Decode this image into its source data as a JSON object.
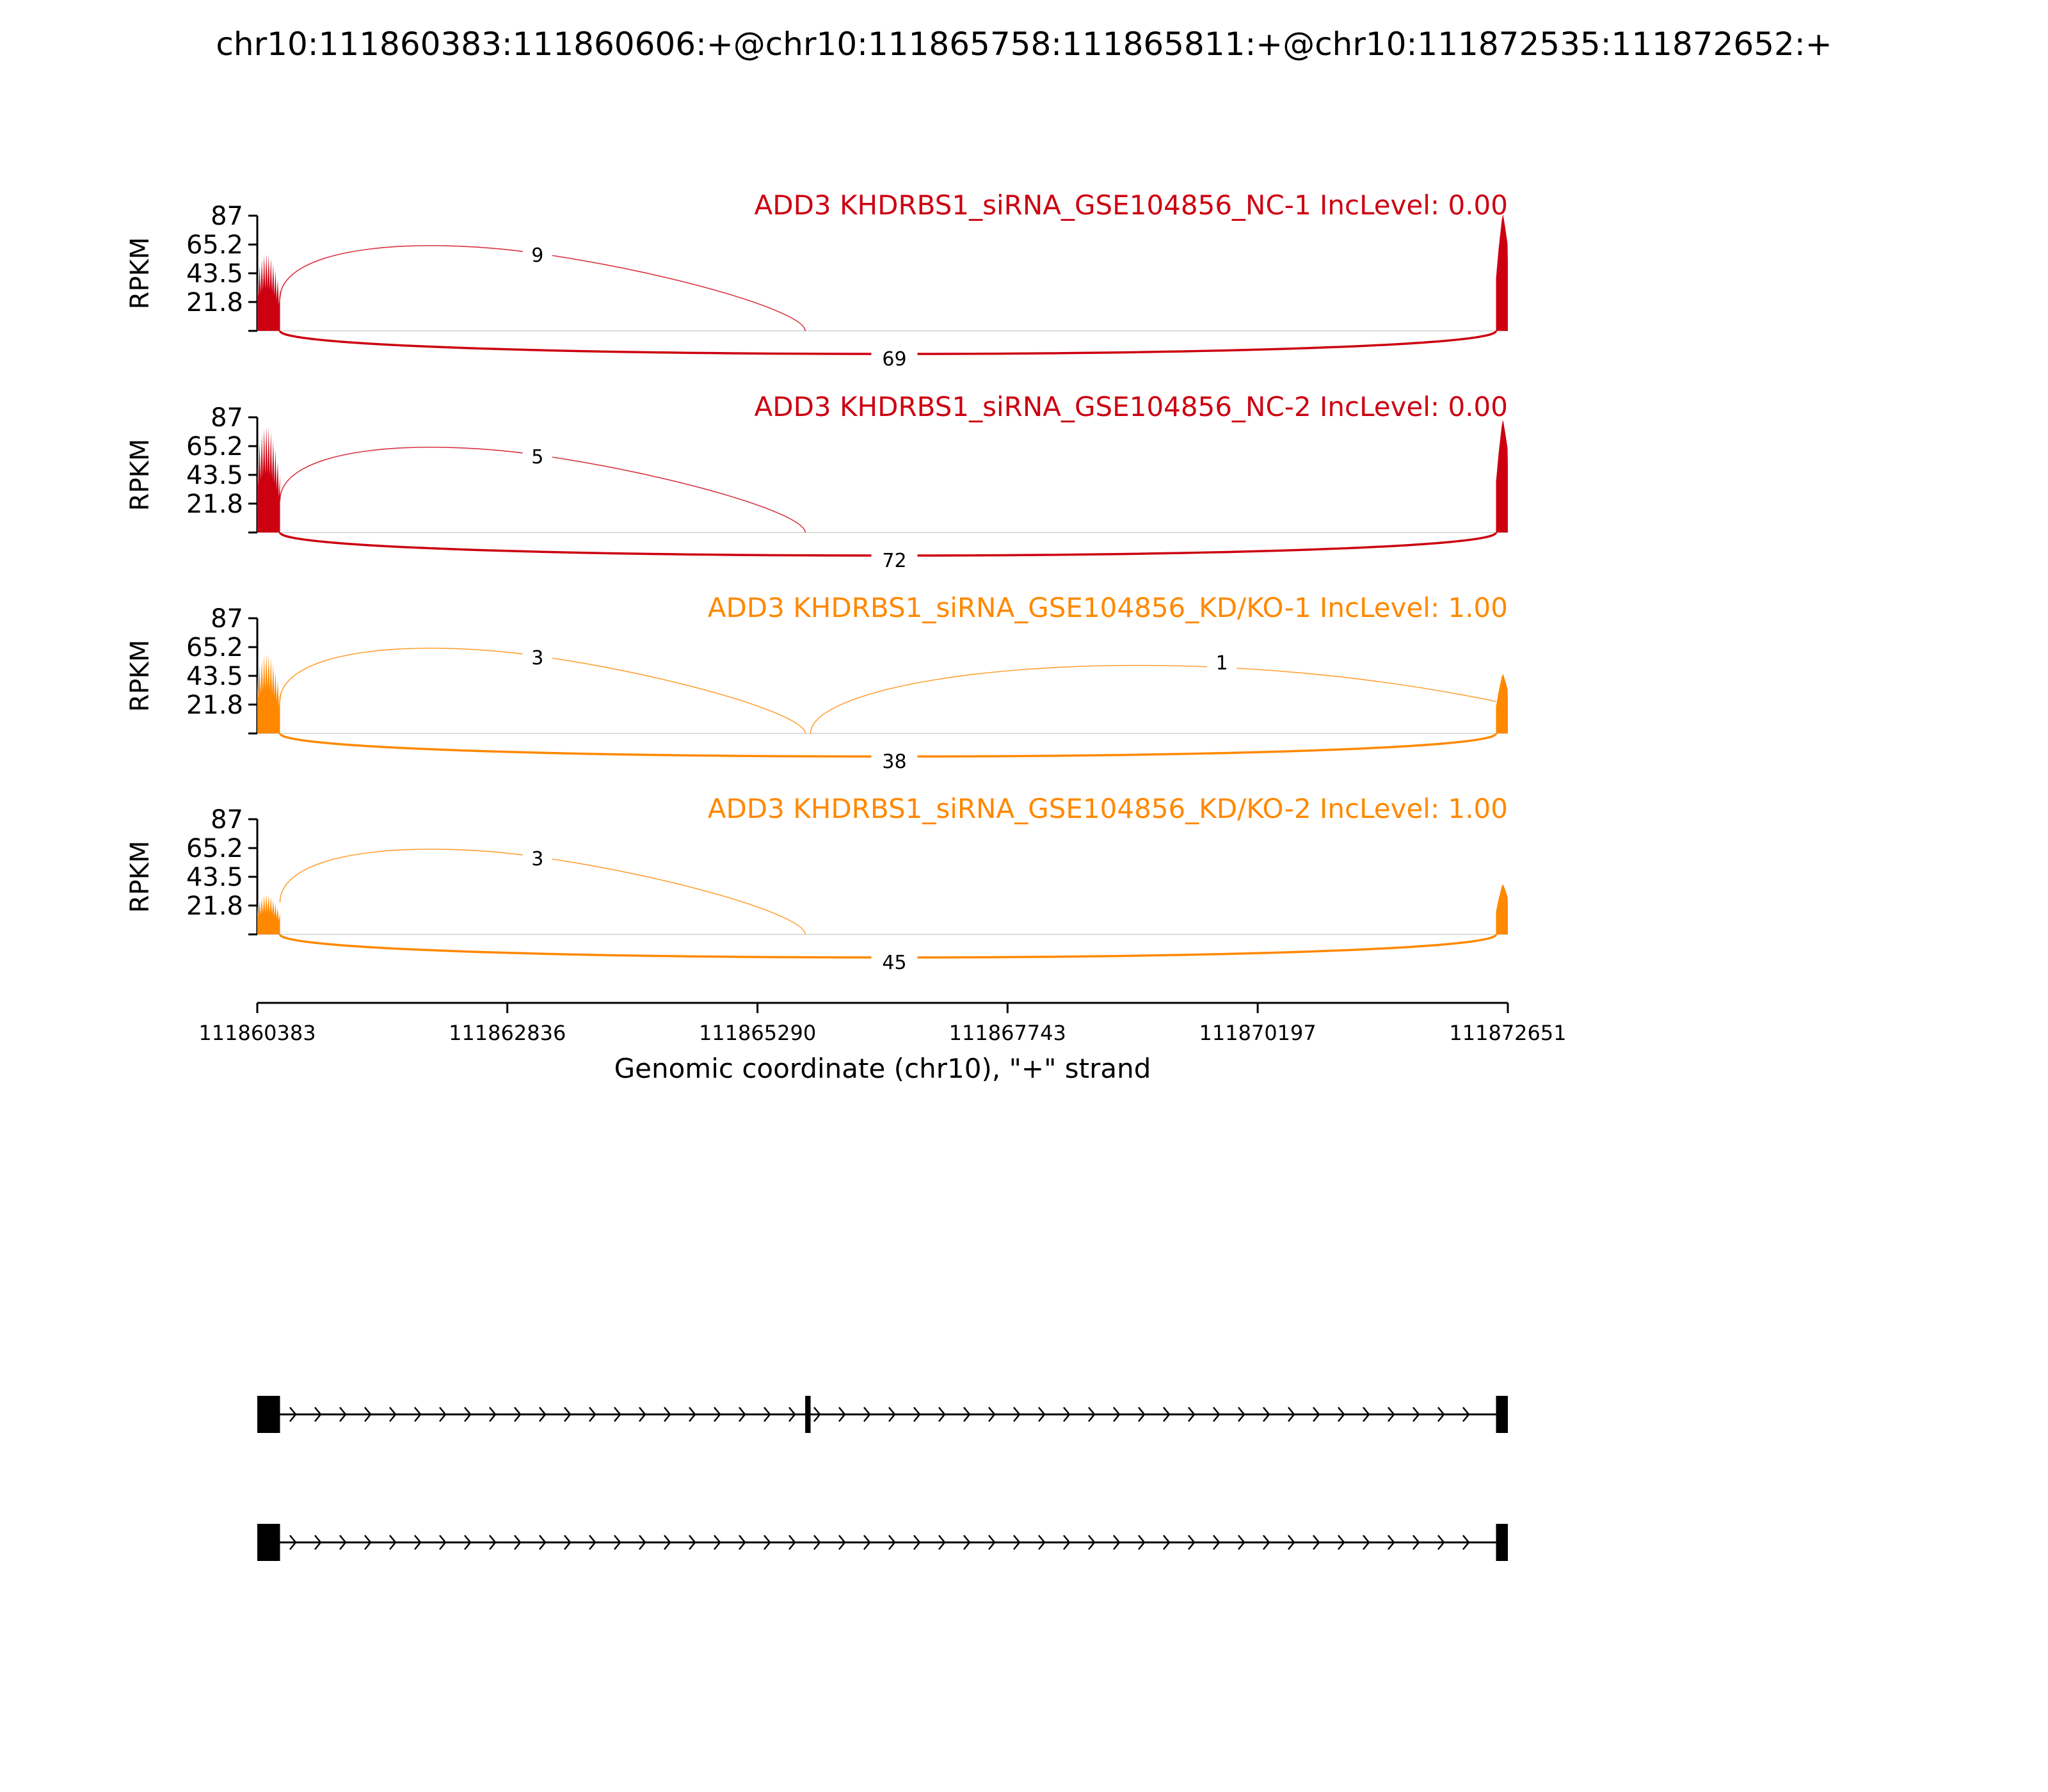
{
  "title": "chr10:111860383:111860606:+@chr10:111865758:111865811:+@chr10:111872535:111872652:+",
  "chart_data": {
    "type": "sashimi",
    "xlabel": "Genomic coordinate (chr10), \"+\" strand",
    "ylabel": "RPKM",
    "xlim": [
      111860383,
      111872651
    ],
    "ylim": [
      0,
      87
    ],
    "x_ticks": [
      111860383,
      111862836,
      111865290,
      111867743,
      111870197,
      111872651
    ],
    "y_ticks": [
      21.8,
      43.5,
      65.2,
      87
    ],
    "exons": [
      {
        "start": 111860383,
        "end": 111860606
      },
      {
        "start": 111865758,
        "end": 111865811
      },
      {
        "start": 111872535,
        "end": 111872652
      }
    ],
    "tracks": [
      {
        "name": "ADD3 KHDRBS1_siRNA_GSE104856_NC-1 IncLevel: 0.00",
        "color": "#cc0011",
        "peaks": [
          58,
          88
        ],
        "junctions": [
          {
            "from": 111860606,
            "to": 111865758,
            "count": 9,
            "side": "above"
          },
          {
            "from": 111860606,
            "to": 111872535,
            "count": 69,
            "side": "below"
          }
        ]
      },
      {
        "name": "ADD3 KHDRBS1_siRNA_GSE104856_NC-2 IncLevel: 0.00",
        "color": "#cc0011",
        "peaks": [
          80,
          85
        ],
        "junctions": [
          {
            "from": 111860606,
            "to": 111865758,
            "count": 5,
            "side": "above"
          },
          {
            "from": 111860606,
            "to": 111872535,
            "count": 72,
            "side": "below"
          }
        ]
      },
      {
        "name": "ADD3 KHDRBS1_siRNA_GSE104856_KD/KO-1 IncLevel: 1.00",
        "color": "#ff8800",
        "peaks": [
          60,
          45
        ],
        "junctions": [
          {
            "from": 111860606,
            "to": 111865758,
            "count": 3,
            "side": "above"
          },
          {
            "from": 111865811,
            "to": 111872535,
            "count": 1,
            "side": "above"
          },
          {
            "from": 111860606,
            "to": 111872535,
            "count": 38,
            "side": "below"
          }
        ]
      },
      {
        "name": "ADD3 KHDRBS1_siRNA_GSE104856_KD/KO-2 IncLevel: 1.00",
        "color": "#ff8800",
        "peaks": [
          30,
          38
        ],
        "junctions": [
          {
            "from": 111860606,
            "to": 111865758,
            "count": 3,
            "side": "above"
          },
          {
            "from": 111860606,
            "to": 111872535,
            "count": 45,
            "side": "below"
          }
        ]
      }
    ],
    "isoforms": [
      {
        "exons": [
          [
            111860383,
            111860606
          ],
          [
            111865758,
            111865811
          ],
          [
            111872535,
            111872652
          ]
        ]
      },
      {
        "exons": [
          [
            111860383,
            111860606
          ],
          [
            111872535,
            111872652
          ]
        ]
      }
    ]
  }
}
